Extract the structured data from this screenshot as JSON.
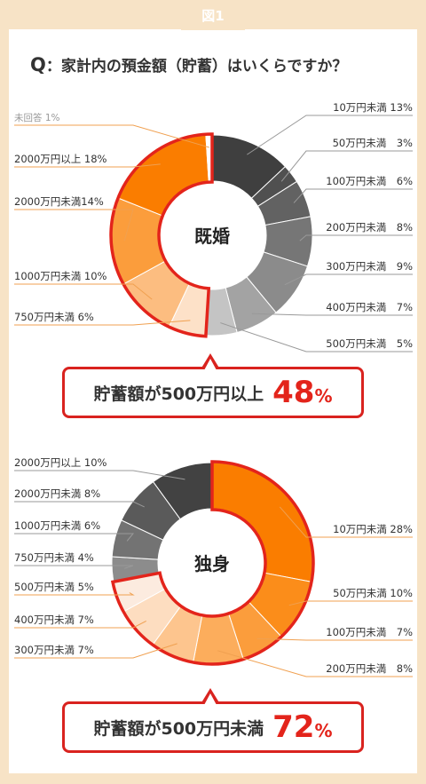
{
  "figure_label": "図1",
  "question": {
    "prefix": "Q",
    "text": "：家計内の預金額（貯蓄）はいくらですか？"
  },
  "married_callout": {
    "text": "貯蓄額が500万円以上",
    "value": "48",
    "unit": "%"
  },
  "single_callout": {
    "text": "貯蓄額が500万円未満",
    "value": "72",
    "unit": "%"
  },
  "colors": {
    "highlight_border": "#e3241b",
    "leader_orange": "#f0a050",
    "leader_gray": "#999999"
  },
  "chart_data": [
    {
      "type": "donut",
      "center_label": "既婚",
      "slices": [
        {
          "label": "10万円未満",
          "value": 13,
          "text": "10万円未満 13%",
          "color": "#3f3f3f",
          "side": "right"
        },
        {
          "label": "50万円未満",
          "value": 3,
          "text": "50万円未満　3%",
          "color": "#505050",
          "side": "right"
        },
        {
          "label": "100万円未満",
          "value": 6,
          "text": "100万円未満　6%",
          "color": "#626262",
          "side": "right"
        },
        {
          "label": "200万円未満",
          "value": 8,
          "text": "200万円未満　8%",
          "color": "#767676",
          "side": "right"
        },
        {
          "label": "300万円未満",
          "value": 9,
          "text": "300万円未満　9%",
          "color": "#8b8b8b",
          "side": "right"
        },
        {
          "label": "400万円未満",
          "value": 7,
          "text": "400万円未満　7%",
          "color": "#a3a3a3",
          "side": "right"
        },
        {
          "label": "500万円未満",
          "value": 5,
          "text": "500万円未満　5%",
          "color": "#c4c4c4",
          "side": "right"
        },
        {
          "label": "750万円未満",
          "value": 6,
          "text": "750万円未満 6%",
          "color": "#fde1c8",
          "side": "left"
        },
        {
          "label": "1000万円未満",
          "value": 10,
          "text": "1000万円未満 10%",
          "color": "#fcbd80",
          "side": "left"
        },
        {
          "label": "2000万円未満",
          "value": 14,
          "text": "2000万円未満14%",
          "color": "#fb9d3c",
          "side": "left"
        },
        {
          "label": "2000万円以上",
          "value": 18,
          "text": "2000万円以上 18%",
          "color": "#fa7d00",
          "side": "left"
        },
        {
          "label": "未回答",
          "value": 1,
          "text": "未回答 1%",
          "color": "#ffffff",
          "side": "left"
        }
      ],
      "highlight": [
        "750万円未満",
        "1000万円未満",
        "2000万円未満",
        "2000万円以上",
        "未回答"
      ]
    },
    {
      "type": "donut",
      "center_label": "独身",
      "slices": [
        {
          "label": "10万円未満",
          "value": 28,
          "text": "10万円未満 28%",
          "color": "#fa7d00",
          "side": "right"
        },
        {
          "label": "50万円未満",
          "value": 10,
          "text": "50万円未満 10%",
          "color": "#fb8d1a",
          "side": "right"
        },
        {
          "label": "100万円未満",
          "value": 7,
          "text": "100万円未満　7%",
          "color": "#fb9d3c",
          "side": "right"
        },
        {
          "label": "200万円未満",
          "value": 8,
          "text": "200万円未満　8%",
          "color": "#fcad5c",
          "side": "right"
        },
        {
          "label": "300万円未満",
          "value": 7,
          "text": "300万円未満 7%",
          "color": "#fdc58e",
          "side": "left"
        },
        {
          "label": "400万円未満",
          "value": 7,
          "text": "400万円未満 7%",
          "color": "#fdddc0",
          "side": "left"
        },
        {
          "label": "500万円未満",
          "value": 5,
          "text": "500万円未満 5%",
          "color": "#fcebdf",
          "side": "left"
        },
        {
          "label": "750万円未満",
          "value": 4,
          "text": "750万円未満 4%",
          "color": "#8c8c8c",
          "side": "left"
        },
        {
          "label": "1000万円未満",
          "value": 6,
          "text": "1000万円未満 6%",
          "color": "#737373",
          "side": "left"
        },
        {
          "label": "2000万円未満",
          "value": 8,
          "text": "2000万円未満 8%",
          "color": "#5a5a5a",
          "side": "left"
        },
        {
          "label": "2000万円以上",
          "value": 10,
          "text": "2000万円以上 10%",
          "color": "#424242",
          "side": "left"
        }
      ],
      "highlight": [
        "10万円未満",
        "50万円未満",
        "100万円未満",
        "200万円未満",
        "300万円未満",
        "400万円未満",
        "500万円未満"
      ]
    }
  ]
}
